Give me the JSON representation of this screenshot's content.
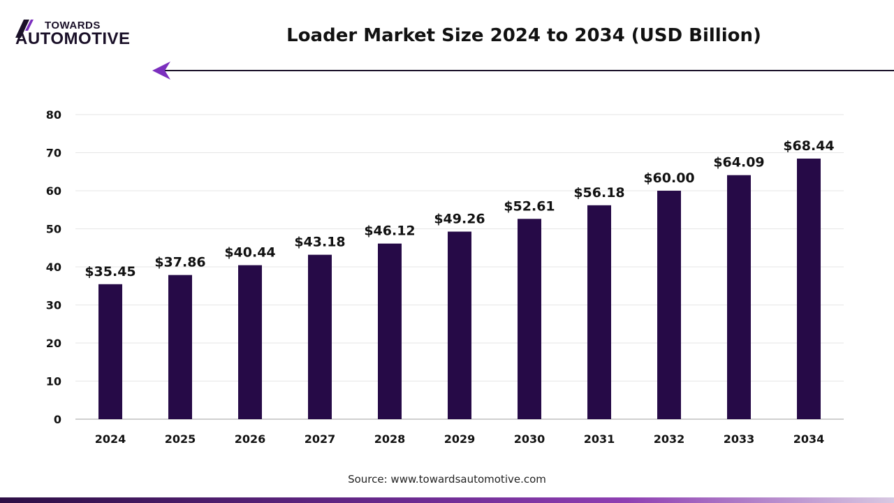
{
  "logo": {
    "line1": "TOWARDS",
    "line2": "AUTOMOTIVE"
  },
  "title": "Loader Market Size 2024 to 2034 (USD Billion)",
  "source": "Source: www.towardsautomotive.com",
  "colors": {
    "bar": "#260a47",
    "accent": "#7b2fbe",
    "text": "#111111"
  },
  "chart_data": {
    "type": "bar",
    "title": "Loader Market Size 2024 to 2034 (USD Billion)",
    "categories": [
      "2024",
      "2025",
      "2026",
      "2027",
      "2028",
      "2029",
      "2030",
      "2031",
      "2032",
      "2033",
      "2034"
    ],
    "values": [
      35.45,
      37.86,
      40.44,
      43.18,
      46.12,
      49.26,
      52.61,
      56.18,
      60.0,
      64.09,
      68.44
    ],
    "data_labels": [
      "$35.45",
      "$37.86",
      "$40.44",
      "$43.18",
      "$46.12",
      "$49.26",
      "$52.61",
      "$56.18",
      "$60.00",
      "$64.09",
      "$68.44"
    ],
    "yticks": [
      "0",
      "10",
      "20",
      "30",
      "40",
      "50",
      "60",
      "70",
      "80"
    ],
    "ylim": [
      0,
      80
    ],
    "xlabel": "",
    "ylabel": "",
    "grid": true,
    "legend": "none"
  }
}
